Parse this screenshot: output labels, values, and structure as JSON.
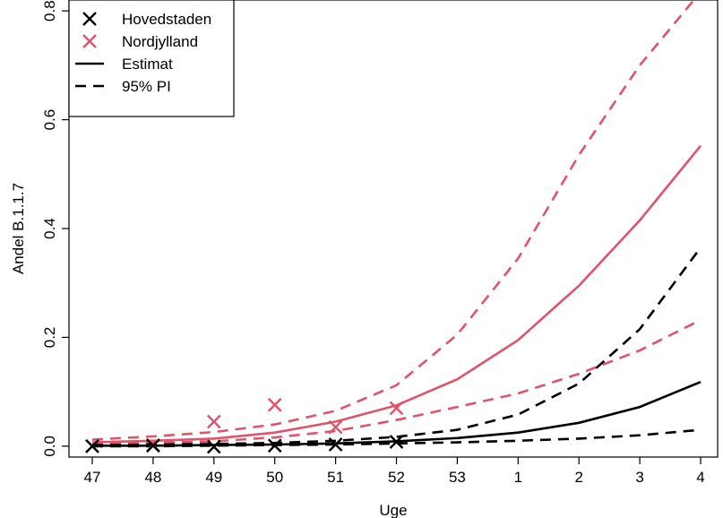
{
  "chart_data": {
    "type": "line",
    "xlabel": "Uge",
    "ylabel": "Andel B.1.1.7",
    "x_tick_labels": [
      "47",
      "48",
      "49",
      "50",
      "51",
      "52",
      "53",
      "1",
      "2",
      "3",
      "4"
    ],
    "y_ticks": [
      0.0,
      0.2,
      0.4,
      0.6,
      0.8
    ],
    "y_tick_labels": [
      "0.0",
      "0.2",
      "0.4",
      "0.6",
      "0.8"
    ],
    "ylim": [
      -0.02,
      0.82
    ],
    "grid": false,
    "legend_position": "top-left",
    "legend": [
      {
        "label": "Hovedstaden",
        "kind": "cross",
        "color": "#000000"
      },
      {
        "label": "Nordjylland",
        "kind": "cross",
        "color": "#DF536B"
      },
      {
        "label": "Estimat",
        "kind": "solid",
        "color": "#000000"
      },
      {
        "label": "95% PI",
        "kind": "dashed",
        "color": "#000000"
      }
    ],
    "series": [
      {
        "name": "Hovedstaden",
        "color": "#000000",
        "observed": [
          0.0,
          0.001,
          -0.001,
          0.001,
          0.003,
          0.008,
          null,
          null,
          null,
          null,
          null
        ],
        "estimate": [
          0.001,
          0.001,
          0.002,
          0.003,
          0.005,
          0.009,
          0.015,
          0.025,
          0.043,
          0.072,
          0.118
        ],
        "pi_lower": [
          0.0,
          0.0,
          0.001,
          0.002,
          0.003,
          0.005,
          0.007,
          0.01,
          0.014,
          0.02,
          0.03
        ],
        "pi_upper": [
          0.002,
          0.003,
          0.004,
          0.006,
          0.01,
          0.017,
          0.03,
          0.058,
          0.115,
          0.215,
          0.365
        ]
      },
      {
        "name": "Nordjylland",
        "color": "#DF536B",
        "observed": [
          0.0,
          0.002,
          0.045,
          0.076,
          0.035,
          0.07,
          null,
          null,
          null,
          null,
          null
        ],
        "estimate": [
          0.007,
          0.01,
          0.014,
          0.025,
          0.045,
          0.075,
          0.123,
          0.195,
          0.295,
          0.415,
          0.552
        ],
        "pi_lower": [
          0.004,
          0.006,
          0.009,
          0.016,
          0.028,
          0.048,
          0.072,
          0.097,
          0.133,
          0.176,
          0.232
        ],
        "pi_upper": [
          0.012,
          0.018,
          0.026,
          0.04,
          0.065,
          0.112,
          0.205,
          0.345,
          0.535,
          0.7,
          0.835
        ]
      }
    ]
  }
}
